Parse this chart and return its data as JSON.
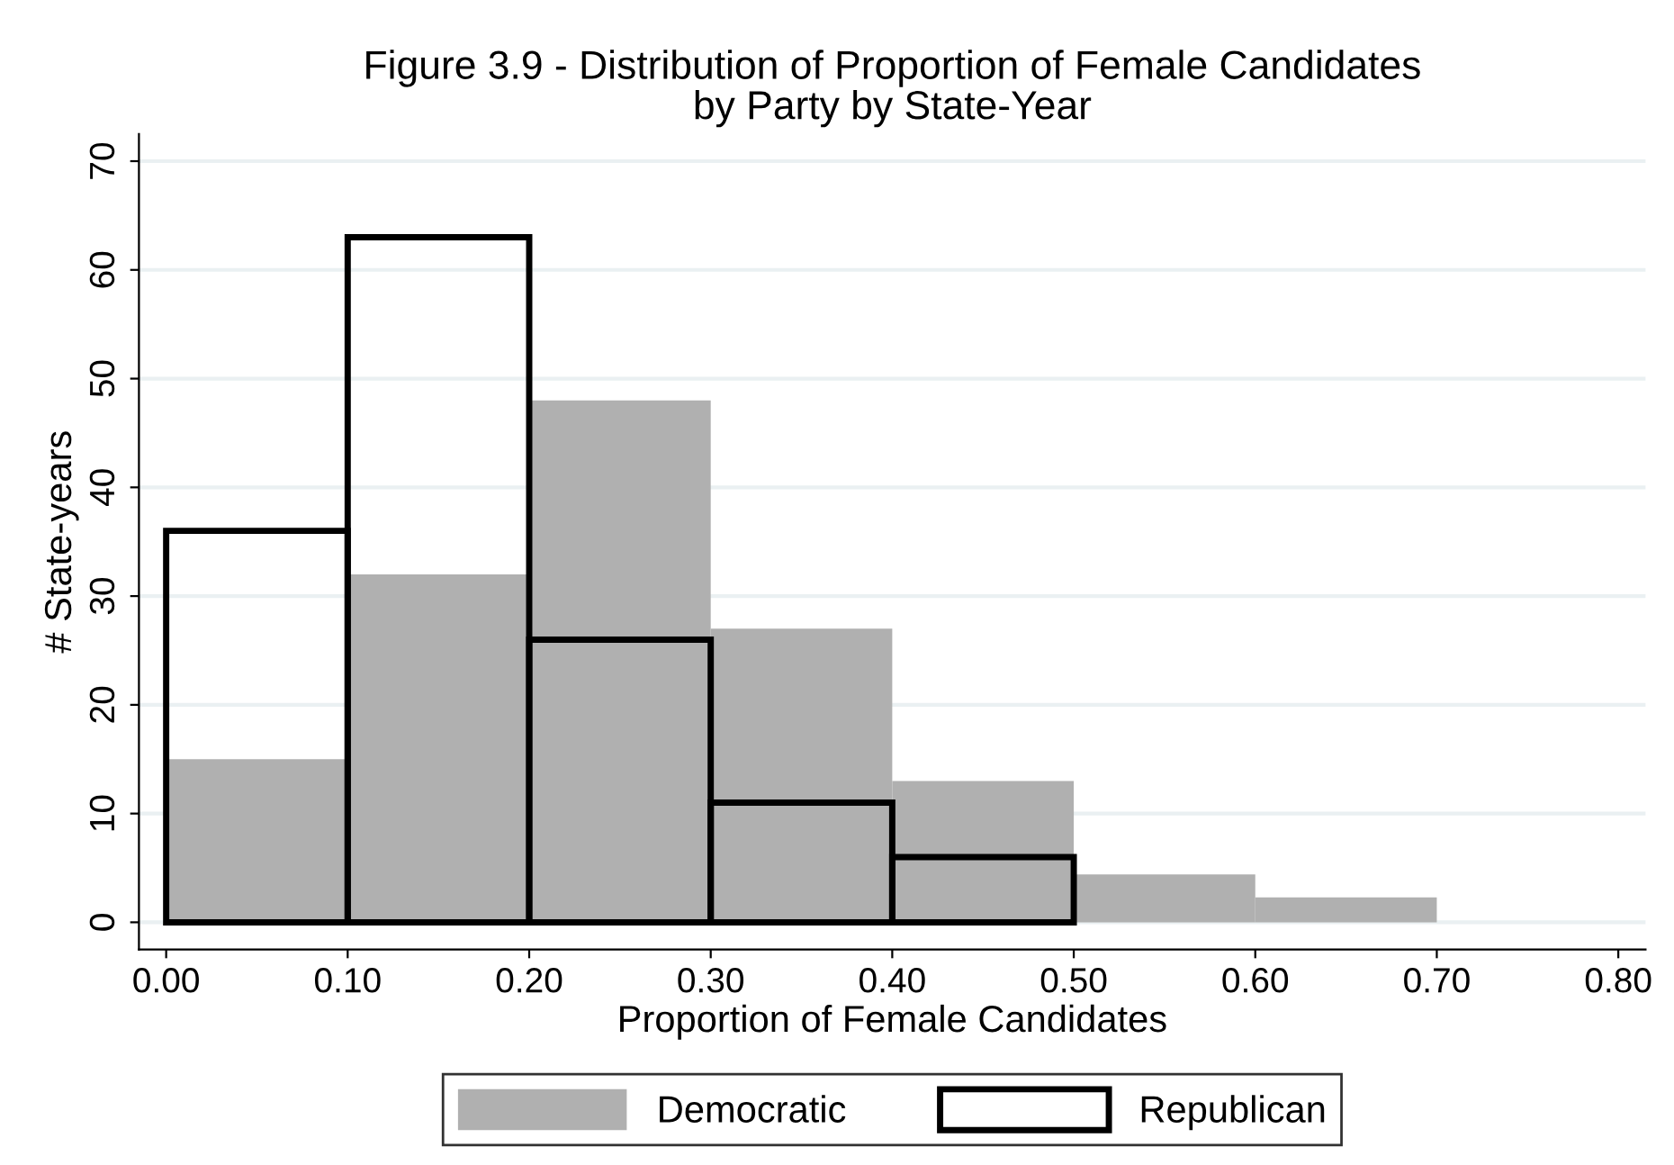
{
  "chart_data": {
    "type": "histogram",
    "title": "Figure 3.9 - Distribution of Proportion of Female Candidates\nby Party by State-Year",
    "xlabel": "Proportion of Female Candidates",
    "ylabel": "# State-years",
    "bins": [
      0,
      0.1,
      0.2,
      0.3,
      0.4,
      0.5,
      0.6,
      0.7
    ],
    "series": [
      {
        "name": "Democratic",
        "color": "#b0b0b0",
        "values": [
          15,
          32,
          48,
          27,
          13,
          4.4,
          2.3
        ]
      },
      {
        "name": "Republican",
        "color": "#000000",
        "values": [
          36,
          63,
          26,
          11,
          6,
          null,
          null
        ]
      }
    ],
    "xlim": [
      -0.015,
      0.815
    ],
    "xticks": [
      {
        "value": 0,
        "label": "0.00"
      },
      {
        "value": 0.1,
        "label": "0.10"
      },
      {
        "value": 0.2,
        "label": "0.20"
      },
      {
        "value": 0.3,
        "label": "0.30"
      },
      {
        "value": 0.4,
        "label": "0.40"
      },
      {
        "value": 0.5,
        "label": "0.50"
      },
      {
        "value": 0.6,
        "label": "0.60"
      },
      {
        "value": 0.7,
        "label": "0.70"
      },
      {
        "value": 0.8,
        "label": "0.80"
      }
    ],
    "ylim": [
      -2.5,
      72.5
    ],
    "yticks": [
      0,
      10,
      20,
      30,
      40,
      50,
      60,
      70
    ],
    "grid": "y",
    "legend": "bottom"
  }
}
